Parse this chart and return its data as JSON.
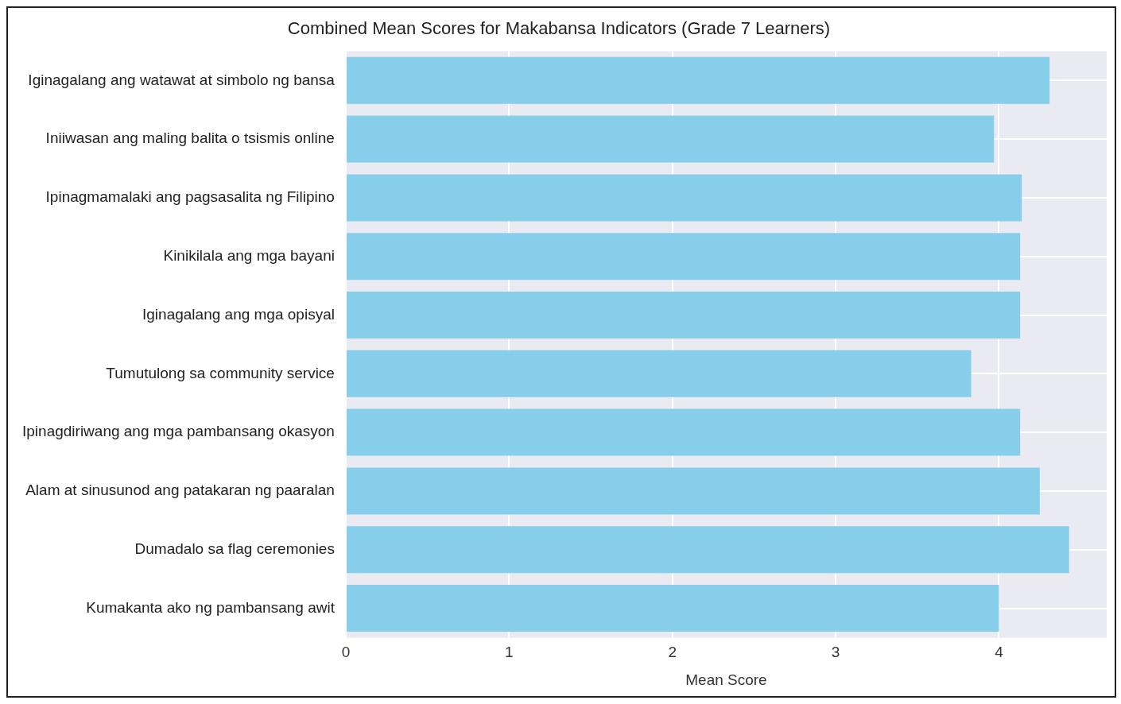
{
  "chart_data": {
    "type": "bar",
    "orientation": "horizontal",
    "title": "Combined Mean Scores for Makabansa Indicators (Grade 7 Learners)",
    "xlabel": "Mean Score",
    "categories": [
      "Iginagalang ang watawat at simbolo ng bansa",
      "Iniiwasan ang maling balita o tsismis online",
      "Ipinagmamalaki ang pagsasalita ng Filipino",
      "Kinikilala ang mga bayani",
      "Iginagalang ang mga opisyal",
      "Tumutulong sa community service",
      "Ipinagdiriwang ang mga pambansang okasyon",
      "Alam at sinusunod ang patakaran ng paaralan",
      "Dumadalo sa flag ceremonies",
      "Kumakanta ako ng pambansang awit"
    ],
    "values": [
      4.31,
      3.97,
      4.14,
      4.13,
      4.13,
      3.83,
      4.13,
      4.25,
      4.43,
      4.0
    ],
    "color": "#87ceeb",
    "xlim": [
      0,
      4.66
    ],
    "xticks": [
      0,
      1,
      2,
      3,
      4
    ],
    "grid": true
  }
}
